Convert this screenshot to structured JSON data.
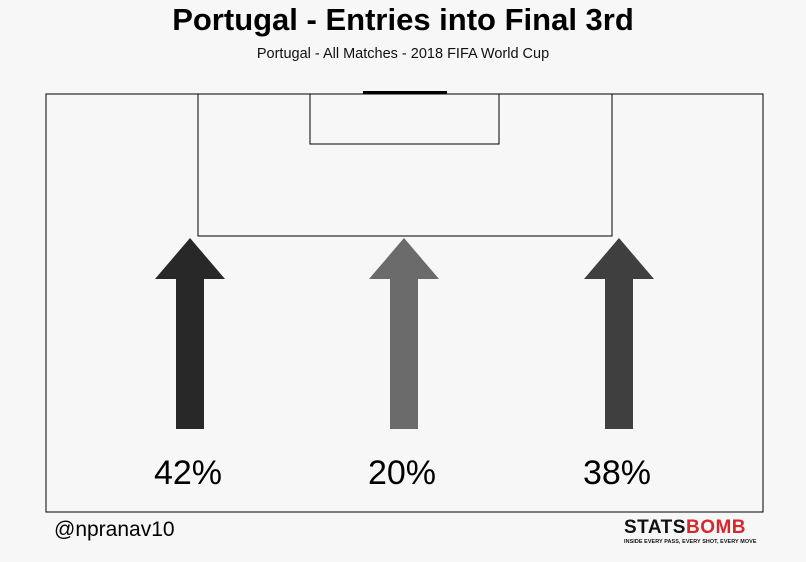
{
  "header": {
    "title": "Portugal - Entries into Final 3rd",
    "subtitle": "Portugal - All Matches - 2018 FIFA World Cup"
  },
  "footer": {
    "credit": "@npranav10",
    "logo": {
      "word_main": "STATS",
      "word_accent": "BOMB",
      "tagline": "INSIDE EVERY PASS, EVERY SHOT, EVERY MOVE"
    }
  },
  "colors": {
    "background": "#f7f7f7",
    "pitch_line": "#000000",
    "logo_accent": "#d8262b"
  },
  "chart_data": {
    "type": "bar",
    "title": "Portugal - Entries into Final 3rd",
    "subtitle": "Portugal - All Matches - 2018 FIFA World Cup",
    "categories": [
      "Left",
      "Center",
      "Right"
    ],
    "values": [
      42,
      20,
      38
    ],
    "labels": [
      "42%",
      "20%",
      "38%"
    ],
    "colors": [
      "#282828",
      "#6b6b6b",
      "#3f3f3f"
    ],
    "unit": "%"
  }
}
